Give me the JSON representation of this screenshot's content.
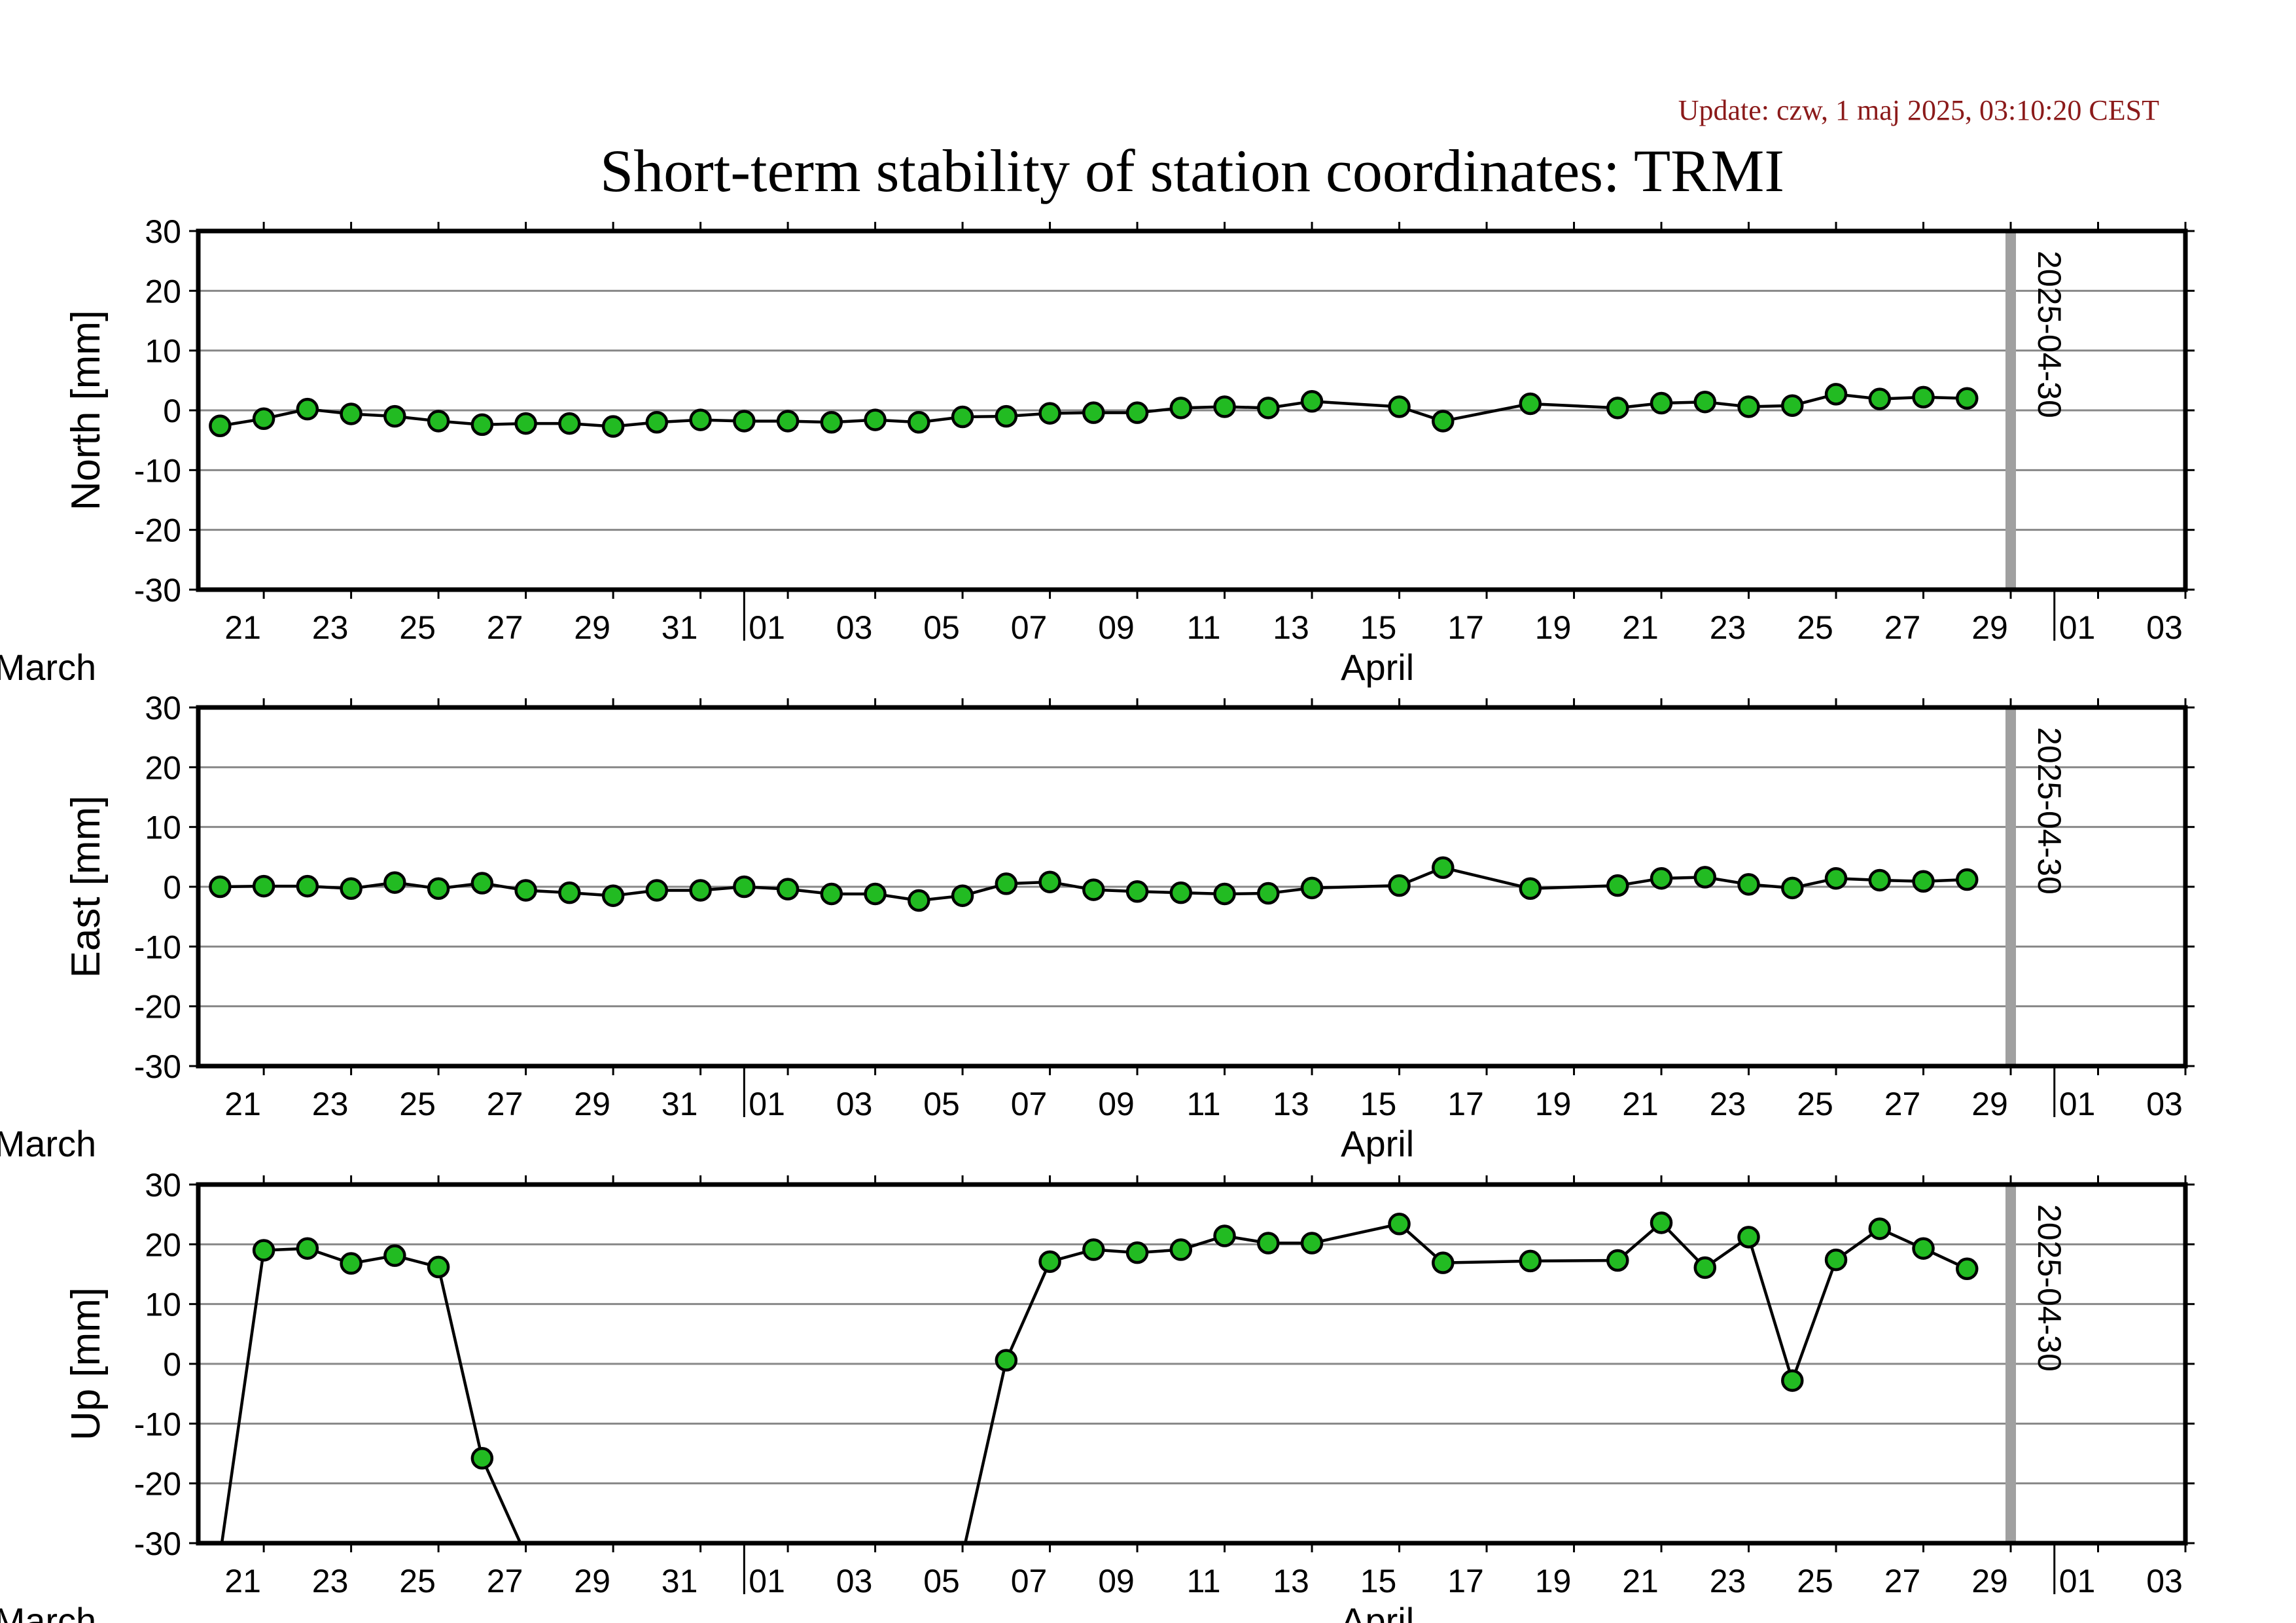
{
  "header": {
    "update_text": "Update: czw, 1 maj 2025, 03:10:20 CEST",
    "title": "Short-term stability of station coordinates: TRMI"
  },
  "colors": {
    "point_fill": "#22bb22",
    "point_stroke": "#000000",
    "line": "#000000",
    "grid": "#888888",
    "marker_line": "#a0a0a0",
    "update_text": "#8b1a1a"
  },
  "chart_data": [
    {
      "type": "line",
      "ylabel": "North [mm]",
      "ylim": [
        -30,
        30
      ],
      "yticks": [
        30,
        20,
        10,
        0,
        -10,
        -20,
        -30
      ],
      "grid": true,
      "xlim": [
        "2025-03-19T12:00",
        "2025-05-04T00:00"
      ],
      "xtick_labels": [
        "21",
        "23",
        "25",
        "27",
        "29",
        "31",
        "01",
        "03",
        "05",
        "07",
        "09",
        "11",
        "13",
        "15",
        "17",
        "19",
        "21",
        "23",
        "25",
        "27",
        "29",
        "01",
        "03"
      ],
      "months": [
        "March",
        "April"
      ],
      "marker": {
        "date": "2025-04-30",
        "label": "2025-04-30"
      },
      "series": [
        {
          "x": [
            "2025-03-20",
            "2025-03-21",
            "2025-03-22",
            "2025-03-23",
            "2025-03-24",
            "2025-03-25",
            "2025-03-26",
            "2025-03-27",
            "2025-03-28",
            "2025-03-29",
            "2025-03-30",
            "2025-03-31",
            "2025-04-01",
            "2025-04-02",
            "2025-04-03",
            "2025-04-04",
            "2025-04-05",
            "2025-04-06",
            "2025-04-07",
            "2025-04-08",
            "2025-04-09",
            "2025-04-10",
            "2025-04-11",
            "2025-04-12",
            "2025-04-13",
            "2025-04-14",
            "2025-04-16",
            "2025-04-17",
            "2025-04-19",
            "2025-04-21",
            "2025-04-22",
            "2025-04-23",
            "2025-04-24",
            "2025-04-25",
            "2025-04-26",
            "2025-04-27",
            "2025-04-28",
            "2025-04-29"
          ],
          "values": [
            -2.6,
            -1.4,
            0.2,
            -0.6,
            -1.0,
            -1.8,
            -2.4,
            -2.2,
            -2.2,
            -2.7,
            -2.0,
            -1.6,
            -1.8,
            -1.8,
            -2.0,
            -1.6,
            -2.0,
            -1.1,
            -1.0,
            -0.5,
            -0.4,
            -0.4,
            0.4,
            0.6,
            0.4,
            1.5,
            0.6,
            -1.8,
            1.1,
            0.4,
            1.2,
            1.4,
            0.6,
            0.8,
            2.7,
            1.9,
            2.2,
            2.0
          ]
        }
      ]
    },
    {
      "type": "line",
      "ylabel": "East [mm]",
      "ylim": [
        -30,
        30
      ],
      "yticks": [
        30,
        20,
        10,
        0,
        -10,
        -20,
        -30
      ],
      "grid": true,
      "xlim": [
        "2025-03-19T12:00",
        "2025-05-04T00:00"
      ],
      "xtick_labels": [
        "21",
        "23",
        "25",
        "27",
        "29",
        "31",
        "01",
        "03",
        "05",
        "07",
        "09",
        "11",
        "13",
        "15",
        "17",
        "19",
        "21",
        "23",
        "25",
        "27",
        "29",
        "01",
        "03"
      ],
      "months": [
        "March",
        "April"
      ],
      "marker": {
        "date": "2025-04-30",
        "label": "2025-04-30"
      },
      "series": [
        {
          "x": [
            "2025-03-20",
            "2025-03-21",
            "2025-03-22",
            "2025-03-23",
            "2025-03-24",
            "2025-03-25",
            "2025-03-26",
            "2025-03-27",
            "2025-03-28",
            "2025-03-29",
            "2025-03-30",
            "2025-03-31",
            "2025-04-01",
            "2025-04-02",
            "2025-04-03",
            "2025-04-04",
            "2025-04-05",
            "2025-04-06",
            "2025-04-07",
            "2025-04-08",
            "2025-04-09",
            "2025-04-10",
            "2025-04-11",
            "2025-04-12",
            "2025-04-13",
            "2025-04-14",
            "2025-04-16",
            "2025-04-17",
            "2025-04-19",
            "2025-04-21",
            "2025-04-22",
            "2025-04-23",
            "2025-04-24",
            "2025-04-25",
            "2025-04-26",
            "2025-04-27",
            "2025-04-28",
            "2025-04-29"
          ],
          "values": [
            0.0,
            0.1,
            0.1,
            -0.3,
            0.7,
            -0.3,
            0.6,
            -0.6,
            -1.0,
            -1.5,
            -0.6,
            -0.6,
            0.0,
            -0.4,
            -1.2,
            -1.2,
            -2.3,
            -1.5,
            0.5,
            0.8,
            -0.5,
            -0.8,
            -1.0,
            -1.2,
            -1.1,
            -0.2,
            0.2,
            3.2,
            -0.3,
            0.2,
            1.4,
            1.6,
            0.4,
            -0.2,
            1.4,
            1.1,
            0.9,
            1.2
          ]
        }
      ]
    },
    {
      "type": "line",
      "ylabel": "Up [mm]",
      "ylim": [
        -30,
        30
      ],
      "yticks": [
        30,
        20,
        10,
        0,
        -10,
        -20,
        -30
      ],
      "grid": true,
      "xlim": [
        "2025-03-19T12:00",
        "2025-05-04T00:00"
      ],
      "xtick_labels": [
        "21",
        "23",
        "25",
        "27",
        "29",
        "31",
        "01",
        "03",
        "05",
        "07",
        "09",
        "11",
        "13",
        "15",
        "17",
        "19",
        "21",
        "23",
        "25",
        "27",
        "29",
        "01",
        "03"
      ],
      "months": [
        "March",
        "April"
      ],
      "marker": {
        "date": "2025-04-30",
        "label": "2025-04-30"
      },
      "series": [
        {
          "x": [
            "2025-03-20",
            "2025-03-21",
            "2025-03-22",
            "2025-03-23",
            "2025-03-24",
            "2025-03-25",
            "2025-03-26",
            "2025-03-27",
            "2025-04-06",
            "2025-04-07",
            "2025-04-08",
            "2025-04-09",
            "2025-04-10",
            "2025-04-11",
            "2025-04-12",
            "2025-04-13",
            "2025-04-14",
            "2025-04-16",
            "2025-04-17",
            "2025-04-19",
            "2025-04-21",
            "2025-04-22",
            "2025-04-23",
            "2025-04-24",
            "2025-04-25",
            "2025-04-26",
            "2025-04-27",
            "2025-04-28",
            "2025-04-29"
          ],
          "values": [
            -32,
            19.0,
            19.3,
            16.8,
            18.1,
            16.2,
            -15.8,
            -32,
            -32,
            0.6,
            17.1,
            19.1,
            18.6,
            19.1,
            21.4,
            20.2,
            20.2,
            23.4,
            16.9,
            17.2,
            17.3,
            23.6,
            16.1,
            21.2,
            -2.8,
            17.4,
            22.6,
            19.3,
            15.9
          ],
          "visible_markers": [
            false,
            true,
            true,
            true,
            true,
            true,
            true,
            false,
            false,
            true,
            true,
            true,
            true,
            true,
            true,
            true,
            true,
            true,
            true,
            true,
            true,
            true,
            true,
            true,
            true,
            true,
            true,
            true,
            true
          ]
        }
      ]
    }
  ]
}
